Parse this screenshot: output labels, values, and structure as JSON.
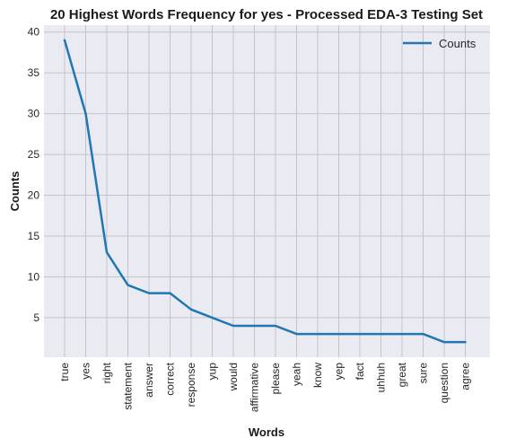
{
  "chart_data": {
    "type": "line",
    "title": "20 Highest Words Frequency for yes - Processed EDA-3 Testing Set",
    "xlabel": "Words",
    "ylabel": "Counts",
    "categories": [
      "true",
      "yes",
      "right",
      "statement",
      "answer",
      "correct",
      "response",
      "yup",
      "would",
      "affirmative",
      "please",
      "yeah",
      "know",
      "yep",
      "fact",
      "uhhuh",
      "great",
      "sure",
      "question",
      "agree"
    ],
    "series": [
      {
        "name": "Counts",
        "values": [
          39,
          30,
          13,
          9,
          8,
          8,
          6,
          5,
          4,
          4,
          4,
          3,
          3,
          3,
          3,
          3,
          3,
          3,
          2,
          2
        ]
      }
    ],
    "yticks": [
      5,
      10,
      15,
      20,
      25,
      30,
      35,
      40
    ],
    "ylim": [
      0.15,
      40.85
    ],
    "grid": true,
    "legend": "top-right",
    "colors": {
      "line": "#1f77b4",
      "plot_bg": "#eaeaf2",
      "grid": "#c4c4c8"
    }
  }
}
